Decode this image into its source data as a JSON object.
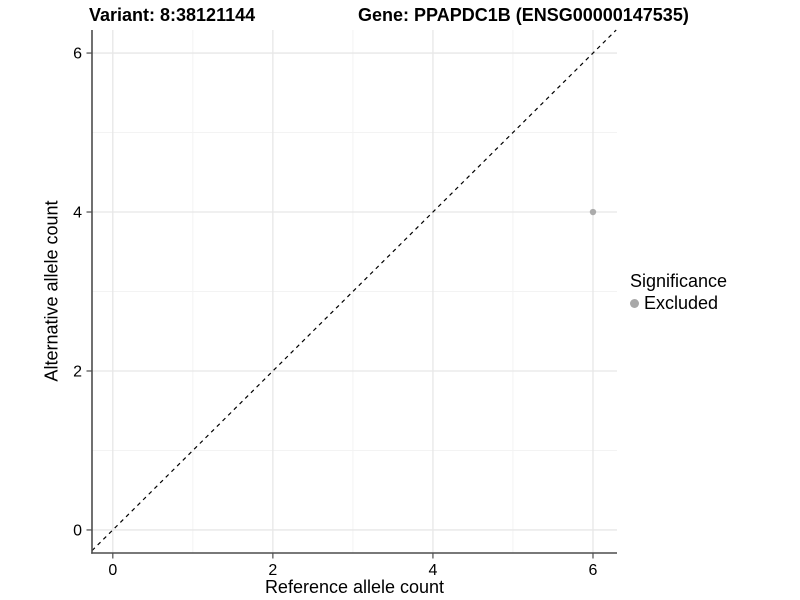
{
  "chart_data": {
    "type": "scatter",
    "title_left": "Variant: 8:38121144",
    "title_right": "Gene: PPAPDC1B (ENSG00000147535)",
    "xlabel": "Reference allele count",
    "ylabel": "Alternative allele count",
    "xlim": [
      -0.26,
      6.3
    ],
    "ylim": [
      -0.29,
      6.29
    ],
    "x_major_ticks": [
      0,
      2,
      4,
      6
    ],
    "y_major_ticks": [
      0,
      2,
      4,
      6
    ],
    "x_minor_ticks": [
      1,
      3,
      5
    ],
    "y_minor_ticks": [
      1,
      3,
      5
    ],
    "grid": true,
    "identity_line": {
      "style": "dashed",
      "color": "#000000",
      "equation": "y = x"
    },
    "series": [
      {
        "name": "Excluded",
        "color": "#ababab",
        "points": [
          {
            "x": 6,
            "y": 4
          }
        ]
      }
    ],
    "legend": {
      "position": "right",
      "title": "Significance",
      "entries": [
        {
          "label": "Excluded",
          "color": "#a8a8a8"
        }
      ]
    },
    "colors": {
      "grid_major": "#e7e7e7",
      "grid_minor": "#f3f3f3",
      "axis_line": "#4d4d4d",
      "tick_mark": "#4d4d4d",
      "tick_text": "#000000",
      "point": "#ababab",
      "background": "#ffffff"
    }
  }
}
